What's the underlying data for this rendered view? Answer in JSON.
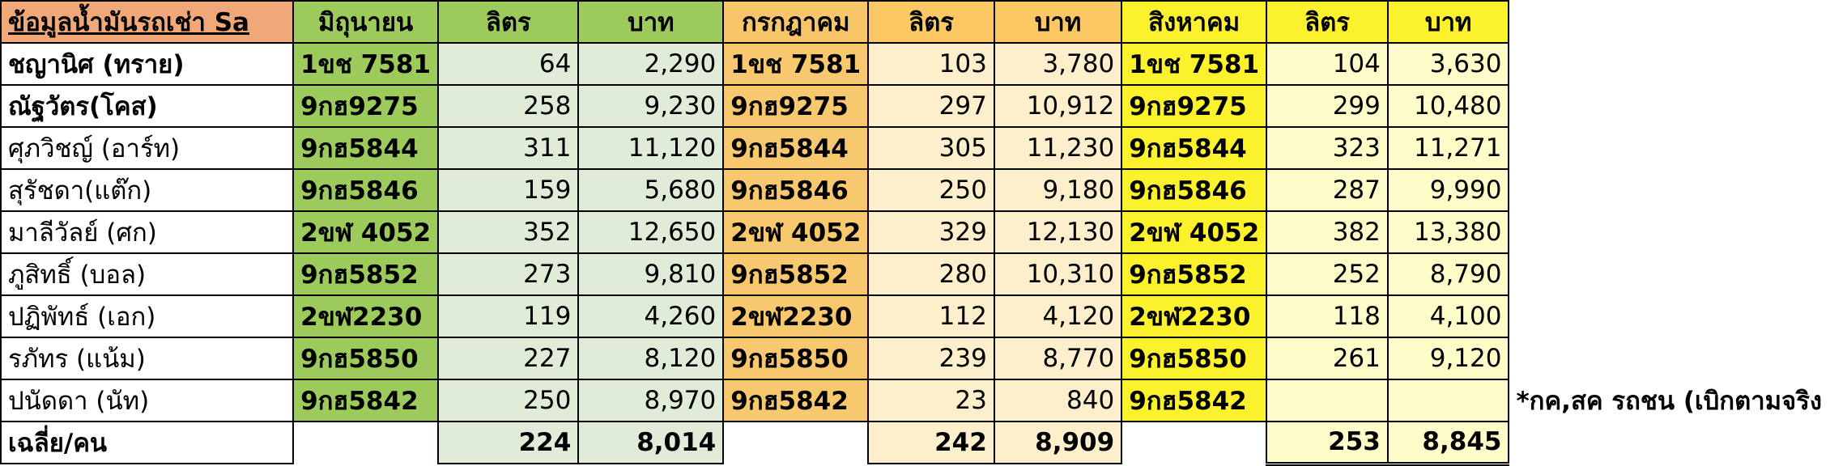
{
  "header": {
    "title": "ข้อมูลน้ำมันรถเช่า Sa",
    "june": "มิถุนายน",
    "july": "กรกฎาคม",
    "august": "สิงหาคม",
    "liters": "ลิตร",
    "baht": "บาท"
  },
  "rows": [
    {
      "name": "ชญานิศ (ทราย)",
      "plate": "1ขช 7581",
      "jun_l": "64",
      "jun_b": "2,290",
      "jul_l": "103",
      "jul_b": "3,780",
      "aug_l": "104",
      "aug_b": "3,630"
    },
    {
      "name": "ณัฐวัตร(โคส)",
      "plate": "9กฮ9275",
      "jun_l": "258",
      "jun_b": "9,230",
      "jul_l": "297",
      "jul_b": "10,912",
      "aug_l": "299",
      "aug_b": "10,480"
    },
    {
      "name": "ศุภวิชญ์ (อาร์ท)",
      "plate": "9กฮ5844",
      "jun_l": "311",
      "jun_b": "11,120",
      "jul_l": "305",
      "jul_b": "11,230",
      "aug_l": "323",
      "aug_b": "11,271"
    },
    {
      "name": "สุรัชดา(แต๊ก)",
      "plate": "9กฮ5846",
      "jun_l": "159",
      "jun_b": "5,680",
      "jul_l": "250",
      "jul_b": "9,180",
      "aug_l": "287",
      "aug_b": "9,990"
    },
    {
      "name": "มาลีวัลย์ (ศก)",
      "plate": "2ขฬ 4052",
      "jun_l": "352",
      "jun_b": "12,650",
      "jul_l": "329",
      "jul_b": "12,130",
      "aug_l": "382",
      "aug_b": "13,380"
    },
    {
      "name": "ภูสิทธิ์ (บอล)",
      "plate": "9กฮ5852",
      "jun_l": "273",
      "jun_b": "9,810",
      "jul_l": "280",
      "jul_b": "10,310",
      "aug_l": "252",
      "aug_b": "8,790"
    },
    {
      "name": "ปฏิพัทธ์ (เอก)",
      "plate": "2ขฬ2230",
      "jun_l": "119",
      "jun_b": "4,260",
      "jul_l": "112",
      "jul_b": "4,120",
      "aug_l": "118",
      "aug_b": "4,100"
    },
    {
      "name": "รภัทร (แน้ม)",
      "plate": "9กฮ5850",
      "jun_l": "227",
      "jun_b": "8,120",
      "jul_l": "239",
      "jul_b": "8,770",
      "aug_l": "261",
      "aug_b": "9,120"
    },
    {
      "name": "ปนัดดา (นัท)",
      "plate": "9กฮ5842",
      "jun_l": "250",
      "jun_b": "8,970",
      "jul_l": "23",
      "jul_b": "840",
      "aug_l": "",
      "aug_b": ""
    }
  ],
  "note": "*กค,สค รถชน (เบิกตามจริง",
  "average": {
    "label": "เฉลี่ย/คน",
    "jun_l": "224",
    "jun_b": "8,014",
    "jul_l": "242",
    "jul_b": "8,909",
    "aug_l": "253",
    "aug_b": "8,845"
  }
}
